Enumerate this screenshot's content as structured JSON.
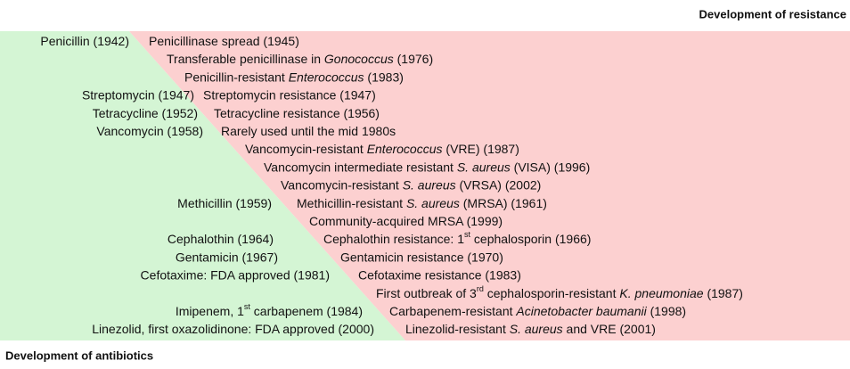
{
  "header": {
    "title": "Development of resistance"
  },
  "footer": {
    "title": "Development of antibiotics"
  },
  "rows": [
    {
      "left": [
        {
          "text": "Penicillin (1942)"
        }
      ],
      "right": [
        {
          "text": "Penicillinase spread (1945)"
        }
      ]
    },
    {
      "left": [],
      "right": [
        {
          "text": "Transferable penicillinase in "
        },
        {
          "text": "Gonococcus",
          "italic": true
        },
        {
          "text": " (1976)"
        }
      ]
    },
    {
      "left": [],
      "right": [
        {
          "text": "Penicillin-resistant "
        },
        {
          "text": "Enterococcus",
          "italic": true
        },
        {
          "text": " (1983)"
        }
      ]
    },
    {
      "left": [
        {
          "text": "Streptomycin (1947)"
        }
      ],
      "right": [
        {
          "text": "Streptomycin resistance (1947)"
        }
      ]
    },
    {
      "left": [
        {
          "text": "Tetracycline (1952)"
        }
      ],
      "right": [
        {
          "text": "Tetracycline resistance (1956)"
        }
      ]
    },
    {
      "left": [
        {
          "text": "Vancomycin (1958)"
        }
      ],
      "right": [
        {
          "text": "Rarely used until the mid 1980s"
        }
      ]
    },
    {
      "left": [],
      "right": [
        {
          "text": "Vancomycin-resistant "
        },
        {
          "text": "Enterococcus",
          "italic": true
        },
        {
          "text": " (VRE) (1987)"
        }
      ]
    },
    {
      "left": [],
      "right": [
        {
          "text": "Vancomycin intermediate resistant "
        },
        {
          "text": "S. aureus",
          "italic": true
        },
        {
          "text": " (VISA) (1996)"
        }
      ]
    },
    {
      "left": [],
      "right": [
        {
          "text": "Vancomycin-resistant "
        },
        {
          "text": "S. aureus",
          "italic": true
        },
        {
          "text": " (VRSA) (2002)"
        }
      ]
    },
    {
      "left": [
        {
          "text": "Methicillin (1959)"
        }
      ],
      "right": [
        {
          "text": "Methicillin-resistant "
        },
        {
          "text": "S. aureus",
          "italic": true
        },
        {
          "text": " (MRSA) (1961)"
        }
      ]
    },
    {
      "left": [],
      "right": [
        {
          "text": "Community-acquired MRSA (1999)"
        }
      ]
    },
    {
      "left": [
        {
          "text": "Cephalothin (1964)"
        }
      ],
      "right": [
        {
          "text": "Cephalothin resistance: 1"
        },
        {
          "text": "st",
          "sup": true
        },
        {
          "text": " cephalosporin (1966)"
        }
      ]
    },
    {
      "left": [
        {
          "text": "Gentamicin (1967)"
        }
      ],
      "right": [
        {
          "text": "Gentamicin resistance (1970)"
        }
      ]
    },
    {
      "left": [
        {
          "text": "Cefotaxime: FDA approved (1981)"
        }
      ],
      "right": [
        {
          "text": "Cefotaxime resistance (1983)"
        }
      ]
    },
    {
      "left": [],
      "right": [
        {
          "text": "First outbreak of 3"
        },
        {
          "text": "rd",
          "sup": true
        },
        {
          "text": " cephalosporin-resistant "
        },
        {
          "text": "K. pneumoniae",
          "italic": true
        },
        {
          "text": " (1987)"
        }
      ]
    },
    {
      "left": [
        {
          "text": "Imipenem, 1"
        },
        {
          "text": "st",
          "sup": true
        },
        {
          "text": " carbapenem (1984)"
        }
      ],
      "right": [
        {
          "text": "Carbapenem-resistant "
        },
        {
          "text": "Acinetobacter baumanii",
          "italic": true
        },
        {
          "text": " (1998)"
        }
      ]
    },
    {
      "left": [
        {
          "text": "Linezolid, first oxazolidinone: FDA approved (2000)"
        }
      ],
      "right": [
        {
          "text": "Linezolid-resistant "
        },
        {
          "text": "S. aureus",
          "italic": true
        },
        {
          "text": " and VRE (2001)"
        }
      ]
    }
  ]
}
